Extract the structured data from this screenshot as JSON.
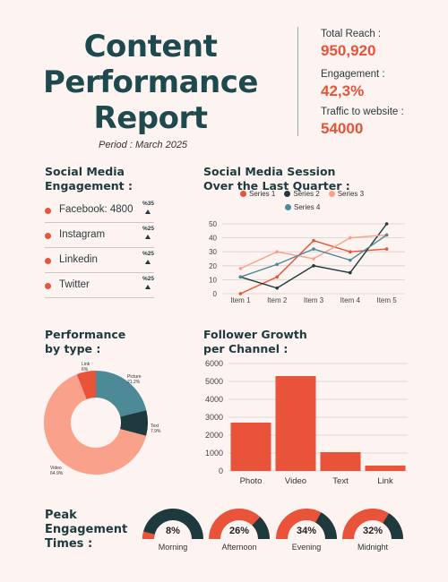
{
  "header": {
    "title_lines": [
      "Content",
      "Performance",
      "Report"
    ],
    "period": "Period : March 2025"
  },
  "stats": [
    {
      "label": "Total Reach :",
      "value": "950,920"
    },
    {
      "label": "Engagement :",
      "value": "42,3%"
    },
    {
      "label": "Traffic to website :",
      "value": "54000"
    }
  ],
  "engagement": {
    "title_lines": [
      "Social Media",
      "Engagement :"
    ],
    "items": [
      {
        "label": "Facebook: 4800",
        "pct": "%35"
      },
      {
        "label": "Instagram",
        "pct": "%25"
      },
      {
        "label": "Linkedin",
        "pct": "%25"
      },
      {
        "label": "Twitter",
        "pct": "%25"
      }
    ]
  },
  "colors": {
    "accent": "#e8533a",
    "dark": "#1e3a3f",
    "salmon": "#f9a18a",
    "teal": "#4b8a96",
    "background": "#fdf3f0"
  },
  "chart_data": [
    {
      "type": "line",
      "title_lines": [
        "Social Media Session",
        "Over the Last Quarter :"
      ],
      "categories": [
        "Item 1",
        "Item 2",
        "Item 3",
        "Item 4",
        "Item 5"
      ],
      "ylim": [
        0,
        50
      ],
      "yticks": [
        0,
        10,
        20,
        30,
        40,
        50
      ],
      "grid": true,
      "legend_position": "top",
      "series": [
        {
          "name": "Series 1",
          "color": "#e8533a",
          "values": [
            0,
            12,
            38,
            30,
            32
          ]
        },
        {
          "name": "Series 2",
          "color": "#1e3a3f",
          "values": [
            12,
            4,
            20,
            15,
            50
          ]
        },
        {
          "name": "Series 3",
          "color": "#f9a18a",
          "values": [
            18,
            30,
            25,
            40,
            42
          ]
        },
        {
          "name": "Series 4",
          "color": "#4b8a96",
          "values": [
            12,
            21,
            32,
            24,
            42
          ]
        }
      ]
    },
    {
      "type": "pie",
      "title_lines": [
        "Performance",
        "by type :"
      ],
      "donut": true,
      "slices": [
        {
          "label": "Picture",
          "pct_label": "21.2%",
          "value": 21.2,
          "color": "#4b8a96"
        },
        {
          "label": "Text",
          "pct_label": "7.9%",
          "value": 7.9,
          "color": "#1e3a3f"
        },
        {
          "label": "Video",
          "pct_label": "64.9%",
          "value": 64.9,
          "color": "#f9a18a"
        },
        {
          "label": "Link",
          "pct_label": "6%",
          "value": 6,
          "color": "#e8533a"
        }
      ]
    },
    {
      "type": "bar",
      "title_lines": [
        "Follower Growth",
        "per Channel :"
      ],
      "categories": [
        "Photo",
        "Video",
        "Text",
        "Link"
      ],
      "values": [
        2700,
        5300,
        1050,
        300
      ],
      "color": "#e8533a",
      "ylim": [
        0,
        6000
      ],
      "yticks": [
        0,
        1000,
        2000,
        3000,
        4000,
        5000,
        6000
      ],
      "grid": true
    },
    {
      "type": "gauge",
      "title_lines": [
        "Peak",
        "Engagement",
        "Times :"
      ],
      "items": [
        {
          "label": "Morning",
          "value": 8,
          "text": "8%",
          "fill_color": "#e8533a"
        },
        {
          "label": "Afternoon",
          "value": 26,
          "text": "26%",
          "fill_color": "#1e3a3f"
        },
        {
          "label": "Evening",
          "value": 34,
          "text": "34%",
          "fill_color": "#1e3a3f"
        },
        {
          "label": "Midnight",
          "value": 32,
          "text": "32%",
          "fill_color": "#1e3a3f"
        }
      ]
    }
  ]
}
